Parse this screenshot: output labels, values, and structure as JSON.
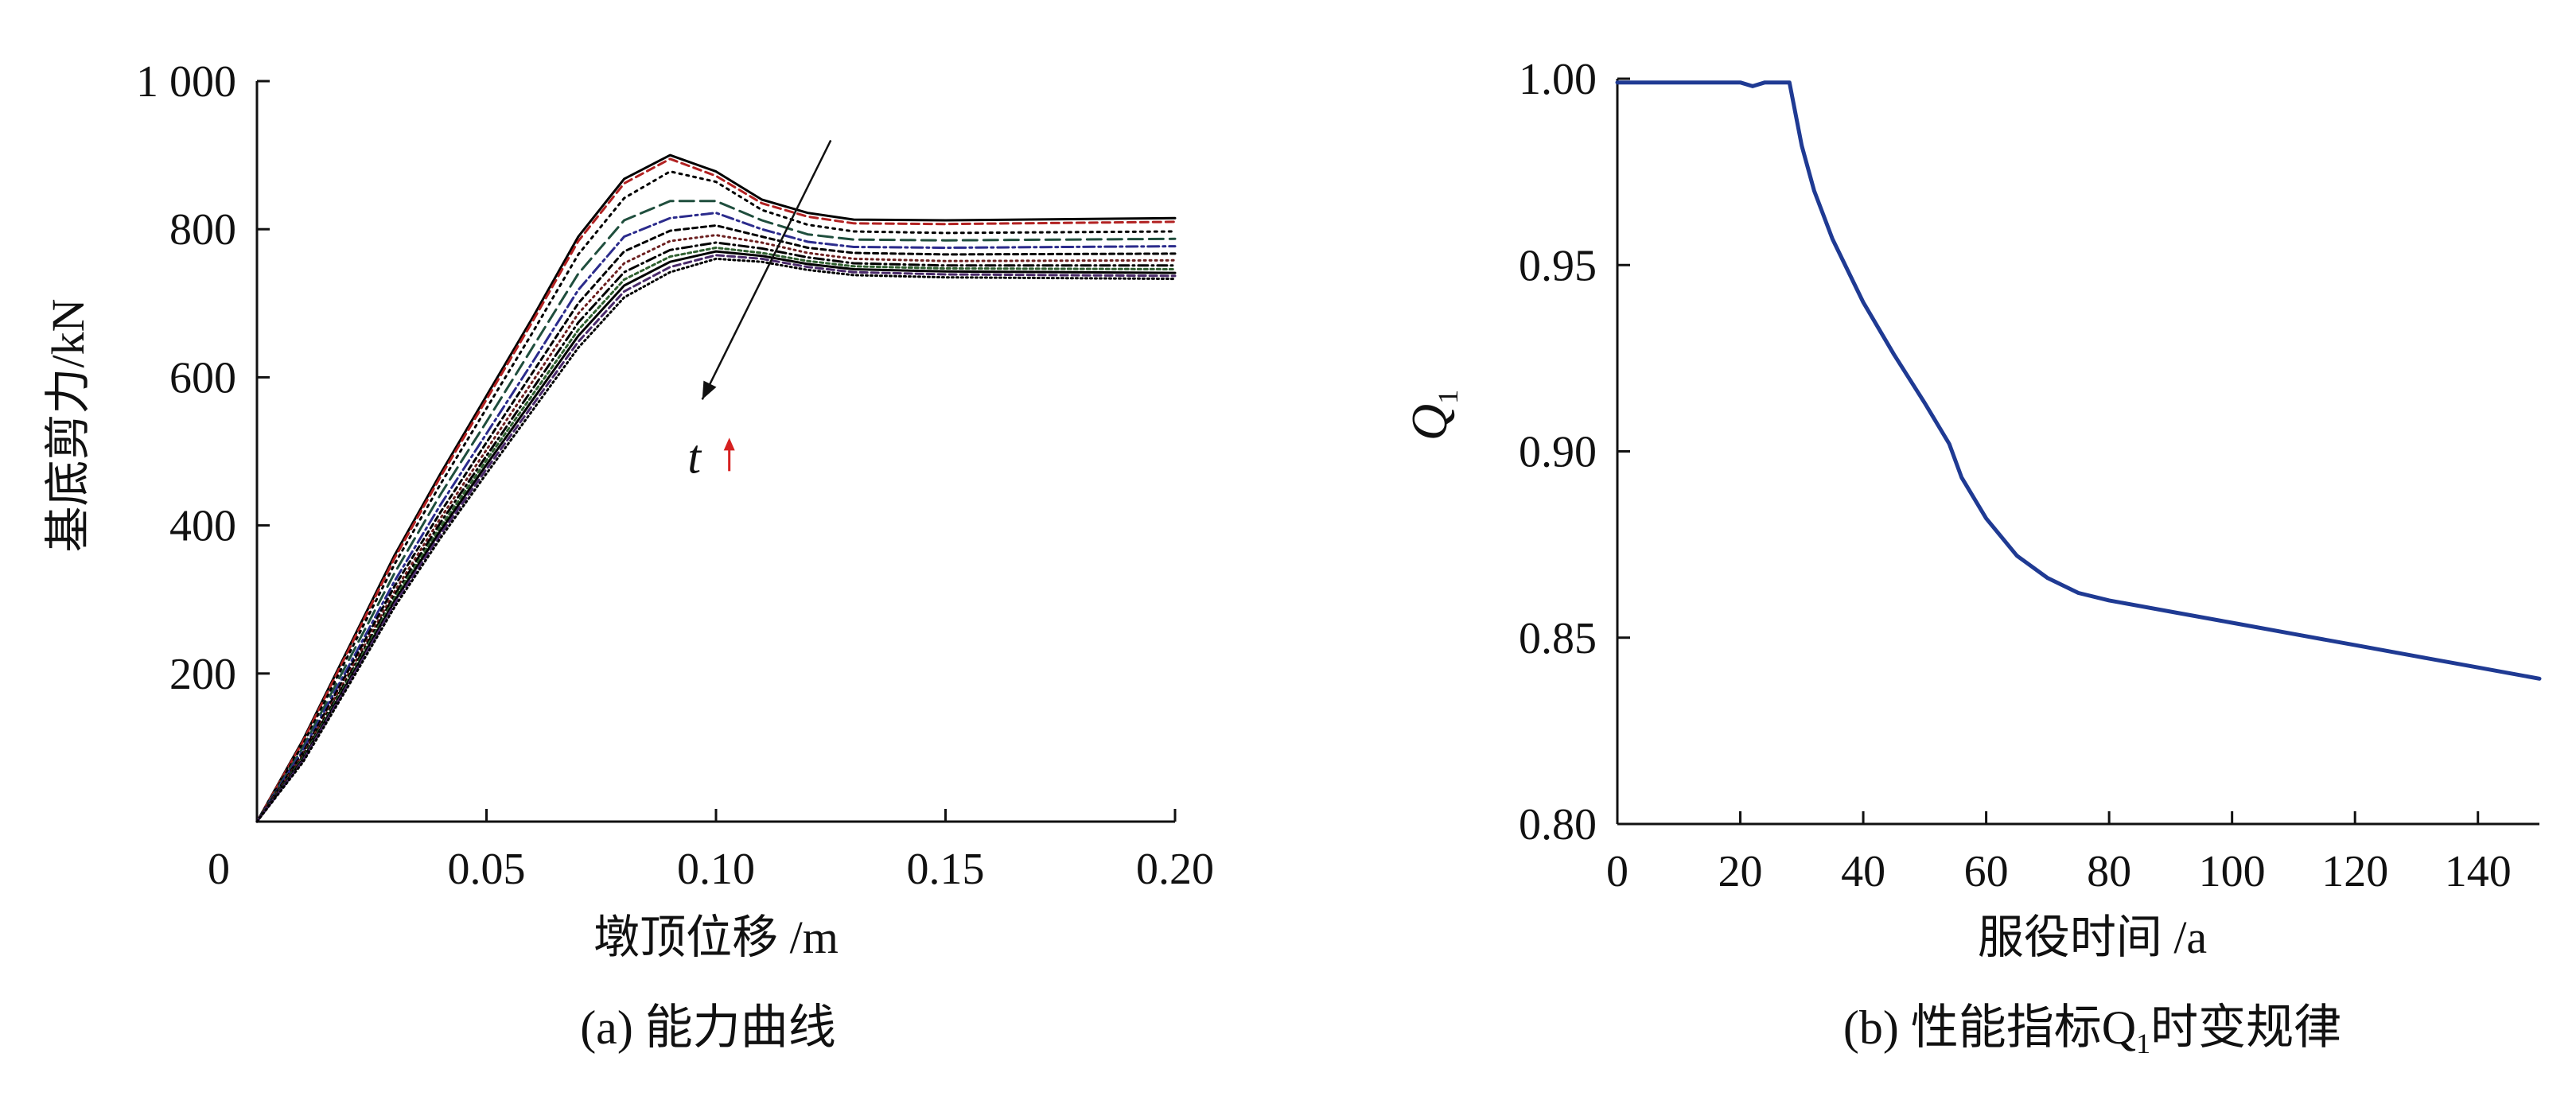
{
  "chart_data": [
    {
      "type": "line",
      "panel_caption": "(a) 能力曲线",
      "xlabel": "墩顶位移 /m",
      "ylabel": "基底剪力/kN",
      "xlim": [
        0,
        0.2
      ],
      "ylim": [
        0,
        1000
      ],
      "xticks": [
        {
          "v": 0,
          "label": "0"
        },
        {
          "v": 0.05,
          "label": "0.05"
        },
        {
          "v": 0.1,
          "label": "0.10"
        },
        {
          "v": 0.15,
          "label": "0.15"
        },
        {
          "v": 0.2,
          "label": "0.20"
        }
      ],
      "yticks": [
        {
          "v": 200,
          "label": "200"
        },
        {
          "v": 400,
          "label": "400"
        },
        {
          "v": 600,
          "label": "600"
        },
        {
          "v": 800,
          "label": "800"
        },
        {
          "v": 1000,
          "label": "1 000"
        }
      ],
      "annotation": {
        "text": "t",
        "arrow_from": [
          0.125,
          920
        ],
        "arrow_to": [
          0.097,
          570
        ]
      },
      "series": [
        {
          "color": "#000000",
          "dash": "",
          "points": [
            [
              0,
              0
            ],
            [
              0.01,
              110
            ],
            [
              0.02,
              235
            ],
            [
              0.03,
              360
            ],
            [
              0.04,
              470
            ],
            [
              0.05,
              575
            ],
            [
              0.06,
              680
            ],
            [
              0.07,
              790
            ],
            [
              0.08,
              868
            ],
            [
              0.09,
              900
            ],
            [
              0.1,
              878
            ],
            [
              0.11,
              840
            ],
            [
              0.12,
              822
            ],
            [
              0.13,
              813
            ],
            [
              0.15,
              812
            ],
            [
              0.2,
              815
            ]
          ]
        },
        {
          "color": "#b22222",
          "dash": "10,6",
          "points": [
            [
              0,
              0
            ],
            [
              0.01,
              108
            ],
            [
              0.02,
              232
            ],
            [
              0.03,
              356
            ],
            [
              0.04,
              466
            ],
            [
              0.05,
              570
            ],
            [
              0.06,
              675
            ],
            [
              0.07,
              784
            ],
            [
              0.08,
              862
            ],
            [
              0.09,
              895
            ],
            [
              0.1,
              872
            ],
            [
              0.11,
              835
            ],
            [
              0.12,
              817
            ],
            [
              0.13,
              808
            ],
            [
              0.15,
              807
            ],
            [
              0.2,
              810
            ]
          ]
        },
        {
          "color": "#000000",
          "dash": "3,6",
          "points": [
            [
              0,
              0
            ],
            [
              0.01,
              104
            ],
            [
              0.02,
              226
            ],
            [
              0.03,
              348
            ],
            [
              0.04,
              456
            ],
            [
              0.05,
              558
            ],
            [
              0.06,
              660
            ],
            [
              0.07,
              766
            ],
            [
              0.08,
              842
            ],
            [
              0.09,
              878
            ],
            [
              0.1,
              864
            ],
            [
              0.11,
              826
            ],
            [
              0.12,
              806
            ],
            [
              0.13,
              797
            ],
            [
              0.15,
              795
            ],
            [
              0.2,
              797
            ]
          ]
        },
        {
          "color": "#1f4e3d",
          "dash": "18,8",
          "points": [
            [
              0,
              0
            ],
            [
              0.01,
              100
            ],
            [
              0.02,
              218
            ],
            [
              0.03,
              336
            ],
            [
              0.04,
              442
            ],
            [
              0.05,
              540
            ],
            [
              0.06,
              640
            ],
            [
              0.07,
              740
            ],
            [
              0.08,
              812
            ],
            [
              0.09,
              838
            ],
            [
              0.1,
              838
            ],
            [
              0.11,
              812
            ],
            [
              0.12,
              793
            ],
            [
              0.13,
              786
            ],
            [
              0.15,
              785
            ],
            [
              0.2,
              787
            ]
          ]
        },
        {
          "color": "#2b2b8c",
          "dash": "14,5,3,5",
          "points": [
            [
              0,
              0
            ],
            [
              0.01,
              96
            ],
            [
              0.02,
              210
            ],
            [
              0.03,
              325
            ],
            [
              0.04,
              428
            ],
            [
              0.05,
              524
            ],
            [
              0.06,
              620
            ],
            [
              0.07,
              718
            ],
            [
              0.08,
              790
            ],
            [
              0.09,
              815
            ],
            [
              0.1,
              822
            ],
            [
              0.11,
              800
            ],
            [
              0.12,
              783
            ],
            [
              0.13,
              776
            ],
            [
              0.15,
              775
            ],
            [
              0.2,
              777
            ]
          ]
        },
        {
          "color": "#000000",
          "dash": "6,5",
          "points": [
            [
              0,
              0
            ],
            [
              0.01,
              93
            ],
            [
              0.02,
              205
            ],
            [
              0.03,
              318
            ],
            [
              0.04,
              418
            ],
            [
              0.05,
              512
            ],
            [
              0.06,
              606
            ],
            [
              0.07,
              700
            ],
            [
              0.08,
              770
            ],
            [
              0.09,
              798
            ],
            [
              0.1,
              805
            ],
            [
              0.11,
              790
            ],
            [
              0.12,
              775
            ],
            [
              0.13,
              768
            ],
            [
              0.15,
              766
            ],
            [
              0.2,
              767
            ]
          ]
        },
        {
          "color": "#6b1f1f",
          "dash": "2,5",
          "points": [
            [
              0,
              0
            ],
            [
              0.01,
              90
            ],
            [
              0.02,
              200
            ],
            [
              0.03,
              311
            ],
            [
              0.04,
              410
            ],
            [
              0.05,
              502
            ],
            [
              0.06,
              594
            ],
            [
              0.07,
              686
            ],
            [
              0.08,
              754
            ],
            [
              0.09,
              784
            ],
            [
              0.1,
              792
            ],
            [
              0.11,
              782
            ],
            [
              0.12,
              768
            ],
            [
              0.13,
              760
            ],
            [
              0.15,
              757
            ],
            [
              0.2,
              758
            ]
          ]
        },
        {
          "color": "#000000",
          "dash": "12,5,2,5",
          "points": [
            [
              0,
              0
            ],
            [
              0.01,
              88
            ],
            [
              0.02,
              196
            ],
            [
              0.03,
              306
            ],
            [
              0.04,
              404
            ],
            [
              0.05,
              494
            ],
            [
              0.06,
              584
            ],
            [
              0.07,
              674
            ],
            [
              0.08,
              742
            ],
            [
              0.09,
              772
            ],
            [
              0.1,
              782
            ],
            [
              0.11,
              774
            ],
            [
              0.12,
              762
            ],
            [
              0.13,
              754
            ],
            [
              0.15,
              751
            ],
            [
              0.2,
              751
            ]
          ]
        },
        {
          "color": "#2f5f2f",
          "dash": "4,4",
          "points": [
            [
              0,
              0
            ],
            [
              0.01,
              86
            ],
            [
              0.02,
              193
            ],
            [
              0.03,
              302
            ],
            [
              0.04,
              398
            ],
            [
              0.05,
              488
            ],
            [
              0.06,
              576
            ],
            [
              0.07,
              664
            ],
            [
              0.08,
              732
            ],
            [
              0.09,
              763
            ],
            [
              0.1,
              775
            ],
            [
              0.11,
              768
            ],
            [
              0.12,
              757
            ],
            [
              0.13,
              750
            ],
            [
              0.15,
              747
            ],
            [
              0.2,
              746
            ]
          ]
        },
        {
          "color": "#000000",
          "dash": "",
          "points": [
            [
              0,
              0
            ],
            [
              0.01,
              84
            ],
            [
              0.02,
              190
            ],
            [
              0.03,
              298
            ],
            [
              0.04,
              393
            ],
            [
              0.05,
              482
            ],
            [
              0.06,
              569
            ],
            [
              0.07,
              656
            ],
            [
              0.08,
              724
            ],
            [
              0.09,
              756
            ],
            [
              0.1,
              770
            ],
            [
              0.11,
              764
            ],
            [
              0.12,
              753
            ],
            [
              0.13,
              746
            ],
            [
              0.15,
              743
            ],
            [
              0.2,
              741
            ]
          ]
        },
        {
          "color": "#4a2a6a",
          "dash": "9,5",
          "points": [
            [
              0,
              0
            ],
            [
              0.01,
              82
            ],
            [
              0.02,
              187
            ],
            [
              0.03,
              294
            ],
            [
              0.04,
              388
            ],
            [
              0.05,
              476
            ],
            [
              0.06,
              562
            ],
            [
              0.07,
              648
            ],
            [
              0.08,
              716
            ],
            [
              0.09,
              749
            ],
            [
              0.1,
              765
            ],
            [
              0.11,
              760
            ],
            [
              0.12,
              749
            ],
            [
              0.13,
              742
            ],
            [
              0.15,
              739
            ],
            [
              0.2,
              737
            ]
          ]
        },
        {
          "color": "#000000",
          "dash": "2,4",
          "points": [
            [
              0,
              0
            ],
            [
              0.01,
              80
            ],
            [
              0.02,
              184
            ],
            [
              0.03,
              290
            ],
            [
              0.04,
              383
            ],
            [
              0.05,
              470
            ],
            [
              0.06,
              555
            ],
            [
              0.07,
              640
            ],
            [
              0.08,
              708
            ],
            [
              0.09,
              742
            ],
            [
              0.1,
              760
            ],
            [
              0.11,
              756
            ],
            [
              0.12,
              745
            ],
            [
              0.13,
              738
            ],
            [
              0.15,
              735
            ],
            [
              0.2,
              733
            ]
          ]
        }
      ]
    },
    {
      "type": "line",
      "panel_caption": "(b) 性能指标Q",
      "panel_caption_sub": "1",
      "panel_caption_tail": "时变规律",
      "xlabel": "服役时间 /a",
      "ylabel": "Q",
      "ylabel_sub": "1",
      "xlim": [
        0,
        150
      ],
      "ylim": [
        0.8,
        1.0
      ],
      "xticks": [
        {
          "v": 0,
          "label": "0"
        },
        {
          "v": 20,
          "label": "20"
        },
        {
          "v": 40,
          "label": "40"
        },
        {
          "v": 60,
          "label": "60"
        },
        {
          "v": 80,
          "label": "80"
        },
        {
          "v": 100,
          "label": "100"
        },
        {
          "v": 120,
          "label": "120"
        },
        {
          "v": 140,
          "label": "140"
        }
      ],
      "yticks": [
        {
          "v": 0.8,
          "label": "0.80"
        },
        {
          "v": 0.85,
          "label": "0.85"
        },
        {
          "v": 0.9,
          "label": "0.90"
        },
        {
          "v": 0.95,
          "label": "0.95"
        },
        {
          "v": 1.0,
          "label": "1.00"
        }
      ],
      "series": [
        {
          "color": "#1f3a93",
          "dash": "",
          "points": [
            [
              0,
              0.999
            ],
            [
              20,
              0.999
            ],
            [
              22,
              0.998
            ],
            [
              24,
              0.999
            ],
            [
              28,
              0.999
            ],
            [
              30,
              0.982
            ],
            [
              32,
              0.97
            ],
            [
              35,
              0.957
            ],
            [
              40,
              0.94
            ],
            [
              45,
              0.926
            ],
            [
              50,
              0.913
            ],
            [
              54,
              0.902
            ],
            [
              56,
              0.893
            ],
            [
              60,
              0.882
            ],
            [
              65,
              0.872
            ],
            [
              70,
              0.866
            ],
            [
              75,
              0.862
            ],
            [
              80,
              0.86
            ],
            [
              90,
              0.857
            ],
            [
              100,
              0.854
            ],
            [
              110,
              0.851
            ],
            [
              120,
              0.848
            ],
            [
              130,
              0.845
            ],
            [
              140,
              0.842
            ],
            [
              150,
              0.839
            ]
          ]
        }
      ]
    }
  ]
}
